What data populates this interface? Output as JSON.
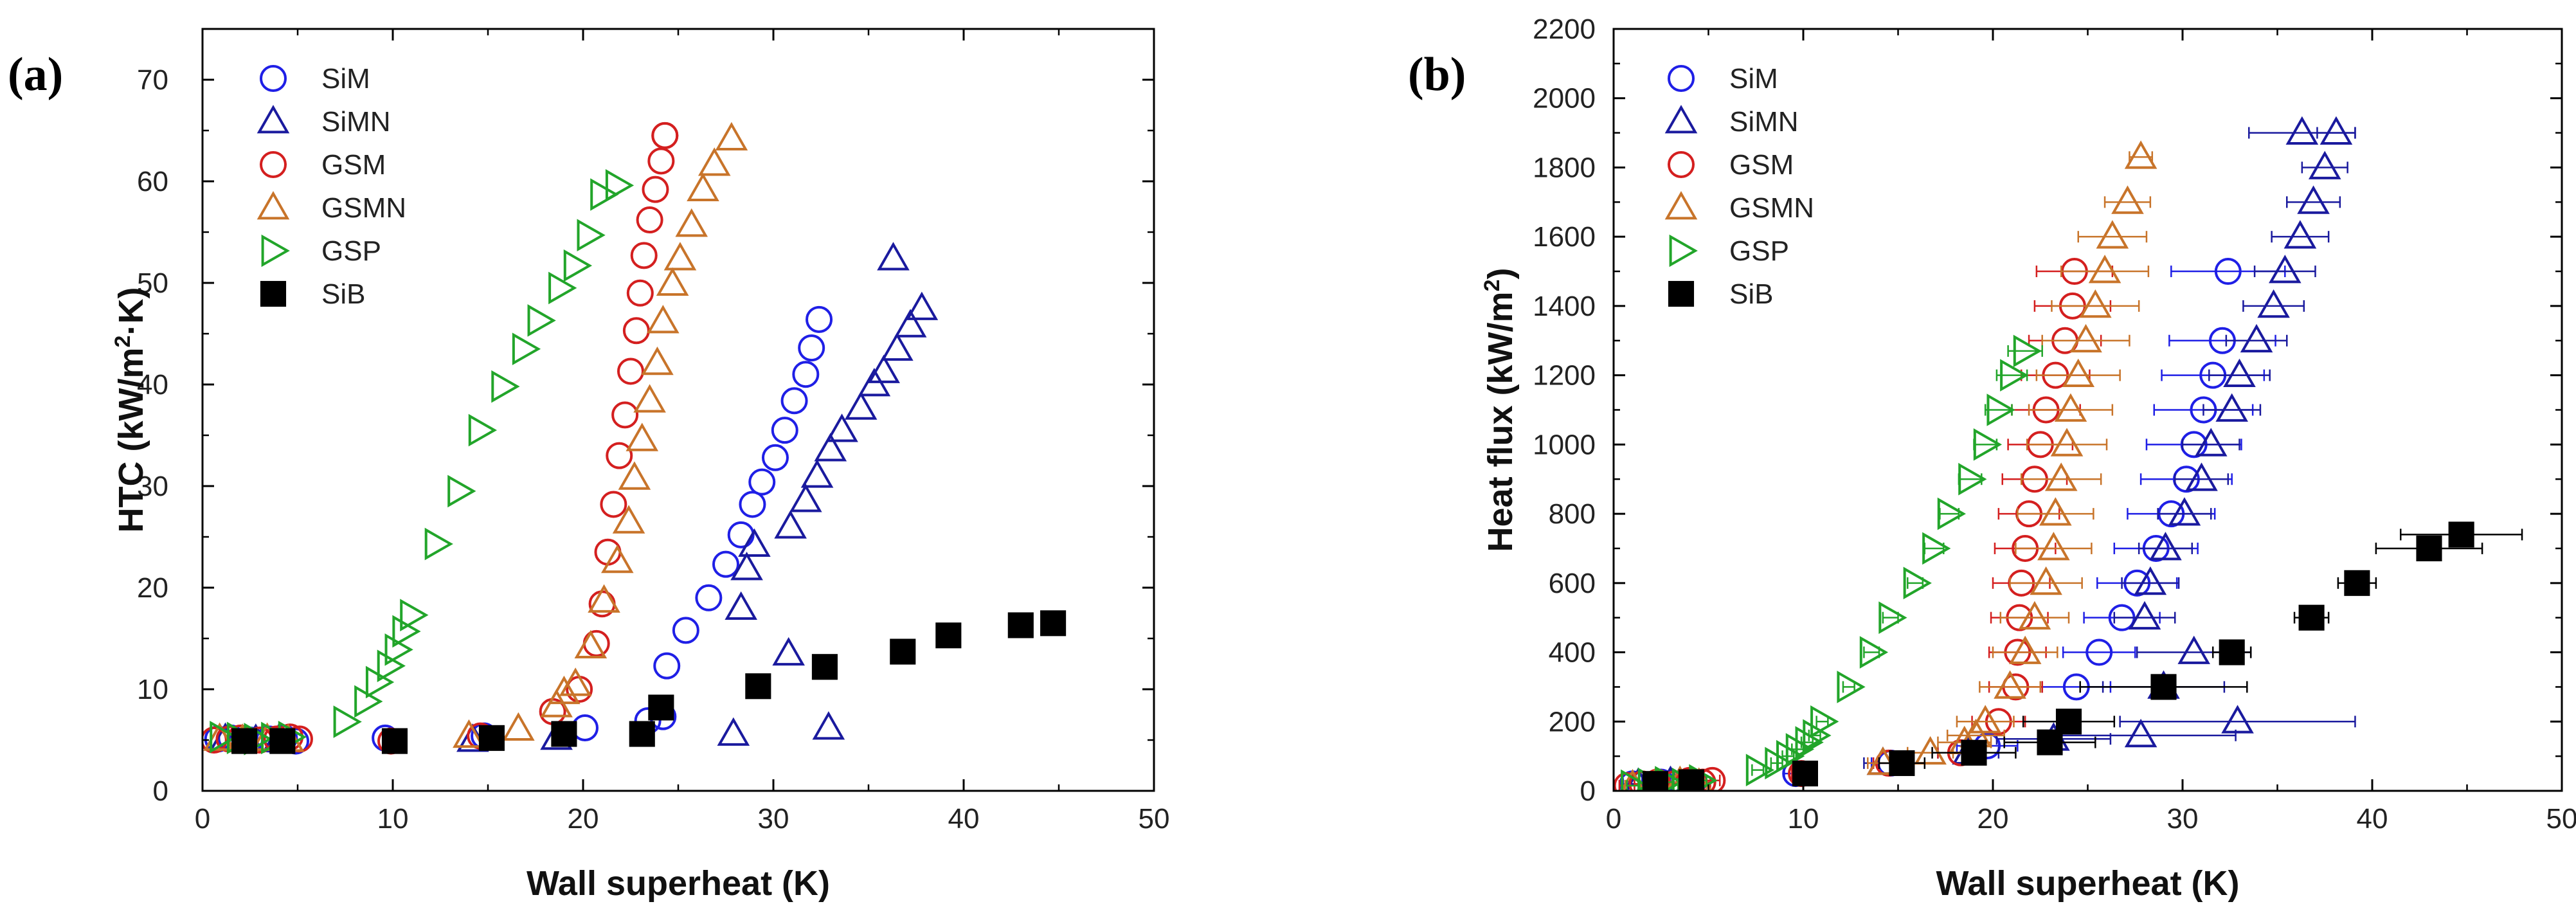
{
  "colors": {
    "SiM": "#1f1fe6",
    "SiMN": "#1a1a9e",
    "GSM": "#d41f1f",
    "GSMN": "#c8742a",
    "GSP": "#22a52a",
    "SiB": "#000000"
  },
  "chart_data": [
    {
      "type": "scatter",
      "panel_label": "(a)",
      "title": "",
      "xlabel": "Wall superheat (K)",
      "ylabel": "HTC (kW/m²·K)",
      "ylabel_parts": {
        "before": "HTC (kW/m",
        "sup": "2",
        "after": "·K)"
      },
      "xlim": [
        0,
        50
      ],
      "ylim": [
        0,
        75
      ],
      "xticks": [
        0,
        10,
        20,
        30,
        40,
        50
      ],
      "yticks": [
        0,
        10,
        20,
        30,
        40,
        50,
        60,
        70
      ],
      "legend_position": "top-left",
      "series": [
        {
          "name": "SiM",
          "marker": "circle",
          "filled": false,
          "color": "#1f1fe6",
          "x": [
            0.8,
            1.5,
            2.5,
            3.5,
            4.3,
            4.9,
            9.6,
            14.8,
            20.1,
            23.4,
            24.2,
            24.4,
            25.4,
            26.6,
            27.5,
            28.3,
            28.9,
            29.4,
            30.1,
            30.6,
            31.1,
            31.7,
            32.0,
            32.4
          ],
          "y": [
            5.1,
            5.2,
            5.0,
            5.1,
            5.2,
            4.9,
            5.2,
            5.4,
            6.2,
            6.9,
            7.3,
            12.3,
            15.8,
            19.0,
            22.3,
            25.2,
            28.2,
            30.4,
            32.8,
            35.5,
            38.4,
            41.0,
            43.6,
            46.4
          ]
        },
        {
          "name": "SiMN",
          "marker": "triangle-up",
          "filled": false,
          "color": "#1a1a9e",
          "x": [
            1.2,
            2.8,
            4.0,
            14.2,
            18.6,
            27.9,
            28.3,
            28.6,
            29.0,
            30.8,
            30.9,
            31.7,
            32.3,
            33.0,
            33.6,
            34.6,
            35.3,
            35.8,
            36.5,
            37.2,
            37.8,
            32.9,
            36.3
          ],
          "y": [
            5.1,
            5.0,
            5.0,
            5.0,
            5.2,
            5.6,
            18.0,
            21.9,
            24.2,
            13.5,
            26.0,
            28.6,
            31.0,
            33.6,
            35.5,
            37.7,
            40.0,
            41.3,
            43.5,
            45.8,
            47.5,
            6.2,
            52.4
          ]
        },
        {
          "name": "GSM",
          "marker": "circle",
          "filled": false,
          "color": "#d41f1f",
          "x": [
            0.6,
            1.4,
            2.0,
            3.0,
            3.9,
            4.6,
            5.1,
            9.9,
            14.6,
            18.4,
            19.8,
            20.7,
            21.0,
            21.3,
            21.6,
            21.9,
            22.2,
            22.5,
            22.8,
            23.0,
            23.2,
            23.5,
            23.8,
            24.1,
            24.3,
            24.3
          ],
          "y": [
            5.0,
            5.1,
            5.2,
            5.0,
            5.1,
            5.3,
            5.1,
            4.9,
            5.4,
            7.8,
            10.0,
            14.5,
            18.4,
            23.5,
            28.2,
            33.0,
            37.0,
            41.3,
            45.3,
            49.0,
            52.7,
            56.2,
            59.2,
            62.0,
            64.5,
            64.5
          ]
        },
        {
          "name": "GSMN",
          "marker": "triangle-up",
          "filled": false,
          "color": "#c8742a",
          "x": [
            0.9,
            2.1,
            3.4,
            4.5,
            14.0,
            16.6,
            18.6,
            19.0,
            19.6,
            20.4,
            21.1,
            21.8,
            22.4,
            22.7,
            23.1,
            23.5,
            23.9,
            24.2,
            24.7,
            25.1,
            25.7,
            26.3,
            26.9,
            27.8
          ],
          "y": [
            5.1,
            5.0,
            5.1,
            5.0,
            5.4,
            6.1,
            8.4,
            9.7,
            10.5,
            14.2,
            18.7,
            22.6,
            26.5,
            30.8,
            34.6,
            38.4,
            42.1,
            46.2,
            49.9,
            52.4,
            55.7,
            59.2,
            61.7,
            64.2
          ]
        },
        {
          "name": "GSP",
          "marker": "triangle-right",
          "filled": false,
          "color": "#22a52a",
          "x": [
            1.0,
            1.9,
            2.8,
            3.7,
            4.6,
            7.5,
            8.6,
            9.2,
            9.8,
            10.2,
            10.6,
            11.0,
            12.3,
            13.5,
            14.6,
            15.8,
            16.9,
            17.7,
            18.8,
            19.6,
            20.3,
            21.0,
            21.8
          ],
          "y": [
            5.3,
            5.2,
            5.1,
            5.2,
            5.3,
            6.8,
            8.8,
            10.7,
            12.3,
            13.9,
            15.7,
            17.3,
            24.3,
            29.5,
            35.5,
            39.8,
            43.5,
            46.3,
            49.5,
            51.7,
            54.7,
            58.7,
            59.6
          ]
        },
        {
          "name": "SiB",
          "marker": "square",
          "filled": true,
          "color": "#000000",
          "x": [
            2.2,
            4.2,
            10.1,
            15.2,
            19.0,
            23.1,
            24.1,
            29.2,
            32.7,
            36.8,
            39.2,
            43.0,
            44.7
          ],
          "y": [
            4.9,
            4.9,
            4.9,
            5.2,
            5.6,
            5.6,
            8.2,
            10.3,
            12.2,
            13.7,
            15.3,
            16.3,
            16.5
          ]
        }
      ]
    },
    {
      "type": "scatter",
      "panel_label": "(b)",
      "title": "",
      "xlabel": "Wall superheat (K)",
      "ylabel": "Heat flux (kW/m²)",
      "ylabel_parts": {
        "before": "Heat flux (kW/m",
        "sup": "2",
        "after": ")"
      },
      "xlim": [
        0,
        50
      ],
      "ylim": [
        0,
        2200
      ],
      "xticks": [
        0,
        10,
        20,
        30,
        40,
        50
      ],
      "yticks": [
        0,
        200,
        400,
        600,
        800,
        1000,
        1200,
        1400,
        1600,
        1800,
        2000,
        2200
      ],
      "legend_position": "top-left",
      "series": [
        {
          "name": "SiM",
          "marker": "circle",
          "filled": false,
          "color": "#1f1fe6",
          "x": [
            1.0,
            2.5,
            4.2,
            9.6,
            14.6,
            19.7,
            24.4,
            25.6,
            26.8,
            27.6,
            28.6,
            29.4,
            30.2,
            30.6,
            31.1,
            31.6,
            32.1,
            32.4
          ],
          "y": [
            20,
            25,
            25,
            50,
            80,
            130,
            300,
            400,
            500,
            600,
            700,
            800,
            900,
            1000,
            1100,
            1200,
            1300,
            1500
          ],
          "x_err": [
            0.5,
            0.5,
            0.5,
            0.6,
            1.0,
            1.6,
            1.8,
            1.9,
            2.0,
            2.1,
            2.2,
            2.3,
            2.4,
            2.5,
            2.6,
            2.7,
            2.8,
            3.0
          ]
        },
        {
          "name": "SiMN",
          "marker": "triangle-up",
          "filled": false,
          "color": "#1a1a9e",
          "x": [
            1.3,
            3.0,
            4.0,
            14.2,
            18.7,
            23.2,
            27.8,
            29.0,
            30.6,
            32.9,
            28.0,
            28.3,
            29.1,
            30.1,
            31.0,
            31.5,
            32.6,
            33.0,
            33.9,
            34.8,
            35.4,
            36.2,
            36.9,
            37.5,
            38.1,
            36.3
          ],
          "y": [
            20,
            25,
            20,
            80,
            110,
            150,
            160,
            300,
            400,
            200,
            500,
            600,
            700,
            800,
            900,
            1000,
            1100,
            1200,
            1300,
            1400,
            1500,
            1600,
            1700,
            1800,
            1900,
            1900
          ],
          "x_err": [
            0.5,
            0.5,
            0.5,
            1.0,
            1.6,
            3.0,
            5.0,
            3.2,
            3.0,
            6.2,
            1.6,
            1.5,
            1.4,
            1.4,
            1.4,
            1.5,
            1.5,
            1.6,
            1.6,
            1.6,
            1.6,
            1.5,
            1.4,
            1.2,
            1.0,
            2.8
          ]
        },
        {
          "name": "GSM",
          "marker": "circle",
          "filled": false,
          "color": "#d41f1f",
          "x": [
            0.7,
            1.5,
            2.3,
            3.2,
            4.0,
            4.7,
            5.2,
            9.9,
            14.5,
            18.3,
            20.3,
            21.2,
            21.3,
            21.4,
            21.5,
            21.7,
            21.9,
            22.2,
            22.5,
            22.8,
            23.3,
            23.8,
            24.2,
            24.3
          ],
          "y": [
            15,
            20,
            25,
            20,
            30,
            25,
            30,
            50,
            80,
            110,
            200,
            300,
            400,
            500,
            600,
            700,
            800,
            900,
            1000,
            1100,
            1200,
            1300,
            1400,
            1500
          ],
          "x_err": [
            0.4,
            0.4,
            0.4,
            0.4,
            0.4,
            0.4,
            0.4,
            0.5,
            0.8,
            1.2,
            1.4,
            1.4,
            1.5,
            1.5,
            1.5,
            1.6,
            1.6,
            1.7,
            1.7,
            1.8,
            1.8,
            1.9,
            2.0,
            2.0
          ]
        },
        {
          "name": "GSMN",
          "marker": "triangle-up",
          "filled": false,
          "color": "#c8742a",
          "x": [
            1.0,
            2.2,
            3.5,
            4.5,
            14.2,
            16.7,
            18.5,
            19.1,
            19.6,
            20.9,
            21.7,
            22.2,
            22.8,
            23.2,
            23.3,
            23.6,
            23.9,
            24.1,
            24.5,
            24.9,
            25.4,
            25.9,
            26.3,
            27.1,
            27.8
          ],
          "y": [
            15,
            20,
            25,
            20,
            80,
            110,
            140,
            160,
            200,
            300,
            400,
            500,
            600,
            700,
            800,
            900,
            1000,
            1100,
            1200,
            1300,
            1400,
            1500,
            1600,
            1700,
            1830
          ],
          "x_err": [
            0.4,
            0.4,
            0.4,
            0.4,
            0.8,
            1.2,
            1.4,
            1.5,
            1.5,
            1.6,
            1.7,
            1.8,
            1.9,
            2.0,
            2.0,
            2.1,
            2.1,
            2.2,
            2.2,
            2.3,
            2.3,
            2.3,
            1.8,
            1.2,
            0.6
          ]
        },
        {
          "name": "GSP",
          "marker": "triangle-right",
          "filled": false,
          "color": "#22a52a",
          "x": [
            1.0,
            1.9,
            2.8,
            3.7,
            4.6,
            7.6,
            8.6,
            9.2,
            9.7,
            10.2,
            10.6,
            11.0,
            12.4,
            13.6,
            14.6,
            15.9,
            16.9,
            17.7,
            18.8,
            19.6,
            20.3,
            21.0,
            21.7
          ],
          "y": [
            15,
            20,
            25,
            20,
            30,
            60,
            80,
            100,
            120,
            140,
            160,
            200,
            300,
            400,
            500,
            600,
            700,
            800,
            900,
            1000,
            1100,
            1200,
            1270
          ],
          "x_err": [
            0.3,
            0.3,
            0.3,
            0.3,
            0.3,
            0.3,
            0.3,
            0.3,
            0.3,
            0.3,
            0.3,
            0.3,
            0.3,
            0.4,
            0.4,
            0.4,
            0.5,
            0.5,
            0.6,
            0.6,
            0.7,
            0.8,
            0.9
          ]
        },
        {
          "name": "SiB",
          "marker": "square",
          "filled": true,
          "color": "#000000",
          "x": [
            2.2,
            4.1,
            10.1,
            15.2,
            19.0,
            23.0,
            24.0,
            29.0,
            32.6,
            36.8,
            39.2,
            43.0,
            44.7
          ],
          "y": [
            20,
            25,
            50,
            80,
            110,
            140,
            200,
            300,
            400,
            500,
            600,
            700,
            740
          ],
          "x_err": [
            0.3,
            0.3,
            0.3,
            1.2,
            2.2,
            2.4,
            2.4,
            4.4,
            1.0,
            0.9,
            1.0,
            2.8,
            3.2
          ]
        }
      ]
    }
  ]
}
